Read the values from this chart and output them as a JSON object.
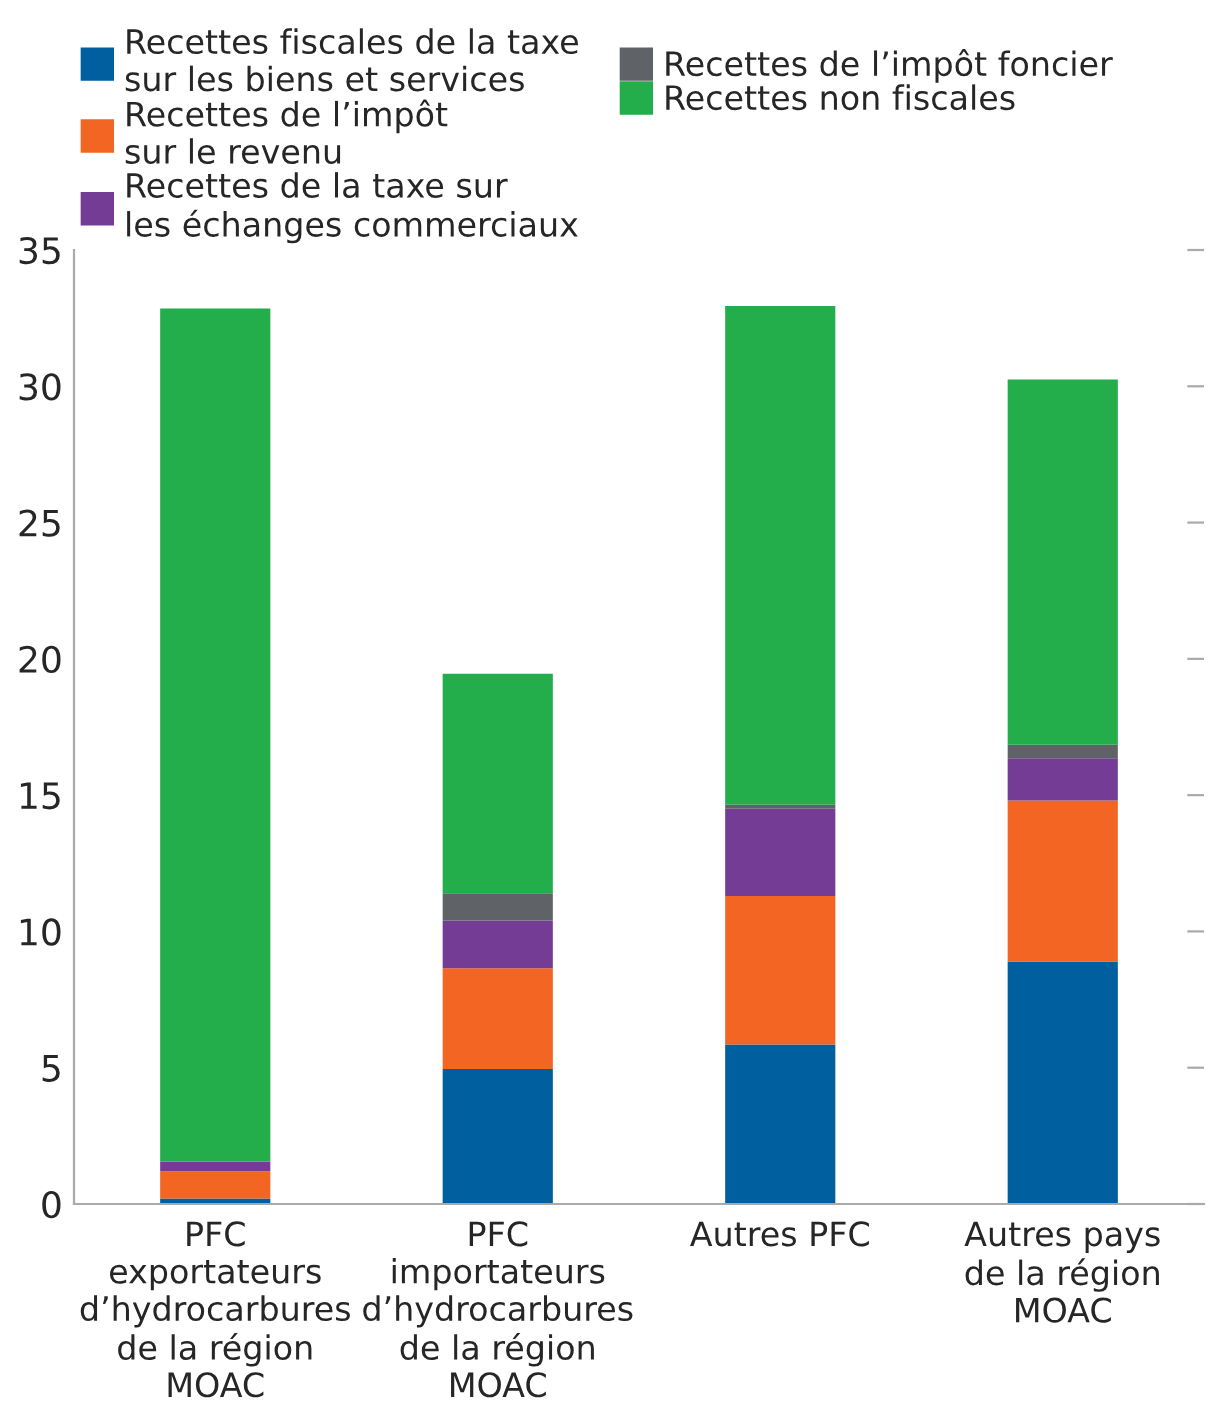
{
  "chart_data": {
    "type": "bar",
    "stacked": true,
    "categories": [
      "PFC\nexportateurs\nd’hydrocarbures\nde la région\nMOAC",
      "PFC\nimportateurs\nd’hydrocarbures\nde la région\nMOAC",
      "Autres PFC",
      "Autres pays\nde la région\nMOAC"
    ],
    "series": [
      {
        "name": "Recettes fiscales de la taxe\nsur les biens et services",
        "color": "#005f9e",
        "values": [
          0.2,
          4.95,
          5.85,
          8.9
        ]
      },
      {
        "name": "Recettes de l’impôt\nsur le revenu",
        "color": "#f26522",
        "values": [
          1.0,
          3.7,
          5.45,
          5.9
        ]
      },
      {
        "name": "Recettes de la taxe sur\nles échanges commerciaux",
        "color": "#753c96",
        "values": [
          0.35,
          1.75,
          3.2,
          1.55
        ]
      },
      {
        "name": "Recettes de l’impôt foncier",
        "color": "#5f6367",
        "values": [
          null,
          1.0,
          0.15,
          0.5
        ]
      },
      {
        "name": "Recettes non fiscales",
        "color": "#23ae4b",
        "values": [
          31.3,
          8.05,
          18.3,
          13.4
        ]
      }
    ],
    "ylim": [
      0,
      35
    ],
    "yticks": [
      0,
      5,
      10,
      15,
      20,
      25,
      30,
      35
    ],
    "grid": false,
    "legend": "top"
  }
}
